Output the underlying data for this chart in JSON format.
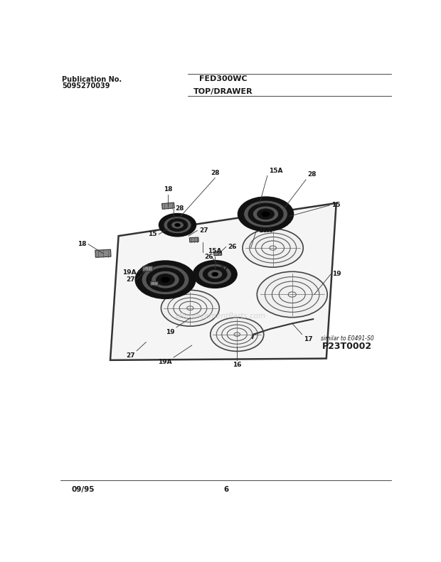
{
  "title_left_line1": "Publication No.",
  "title_left_line2": "5095270039",
  "title_center": "FED300WC",
  "subtitle_center": "TOP/DRAWER",
  "footer_left": "09/95",
  "footer_center": "6",
  "similar_text": "similar to E0491-S0",
  "model_code": "P23T0002",
  "bg_color": "#ffffff",
  "text_color": "#1a1a1a",
  "line_color": "#2a2a2a"
}
